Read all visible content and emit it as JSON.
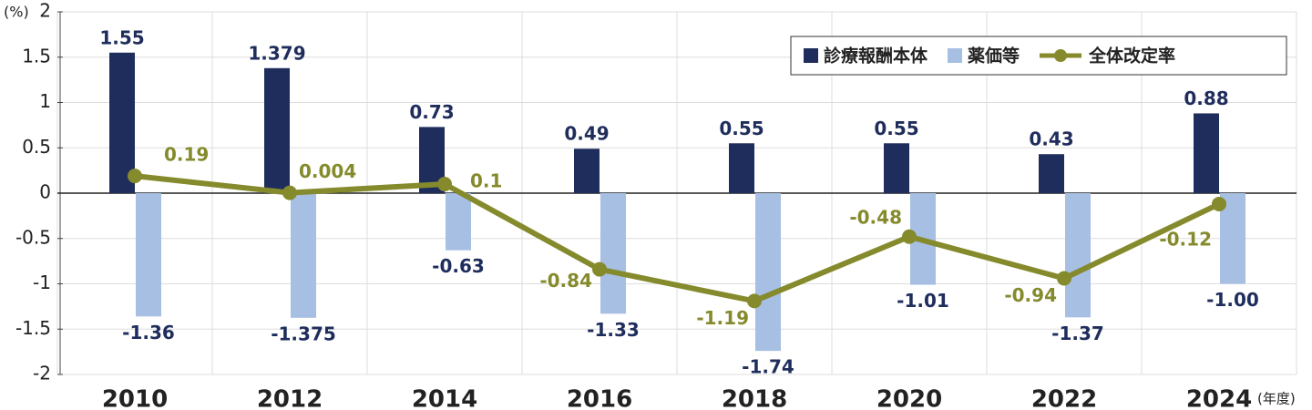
{
  "chart_data": {
    "type": "bar",
    "y_unit": "(%)",
    "x_unit": "(年度)",
    "categories": [
      "2010",
      "2012",
      "2014",
      "2016",
      "2018",
      "2020",
      "2022",
      "2024"
    ],
    "series": [
      {
        "name": "診療報酬本体",
        "type": "bar",
        "color": "#1f2d5c",
        "values": [
          1.55,
          1.379,
          0.73,
          0.49,
          0.55,
          0.55,
          0.43,
          0.88
        ]
      },
      {
        "name": "薬価等",
        "type": "bar",
        "color": "#a6bfe3",
        "values": [
          -1.36,
          -1.375,
          -0.63,
          -1.33,
          -1.74,
          -1.01,
          -1.37,
          -1.0
        ],
        "value_labels": [
          "-1.36",
          "-1.375",
          "-0.63",
          "-1.33",
          "-1.74",
          "-1.01",
          "-1.37",
          "-1.00"
        ]
      },
      {
        "name": "全体改定率",
        "type": "line",
        "color": "#858a2c",
        "values": [
          0.19,
          0.004,
          0.1,
          -0.84,
          -1.19,
          -0.48,
          -0.94,
          -0.12
        ]
      }
    ],
    "ylim": [
      -2,
      2
    ],
    "yticks": [
      -2,
      -1.5,
      -1,
      -0.5,
      0,
      0.5,
      1,
      1.5,
      2
    ],
    "grid": true,
    "legend": "top-right"
  }
}
